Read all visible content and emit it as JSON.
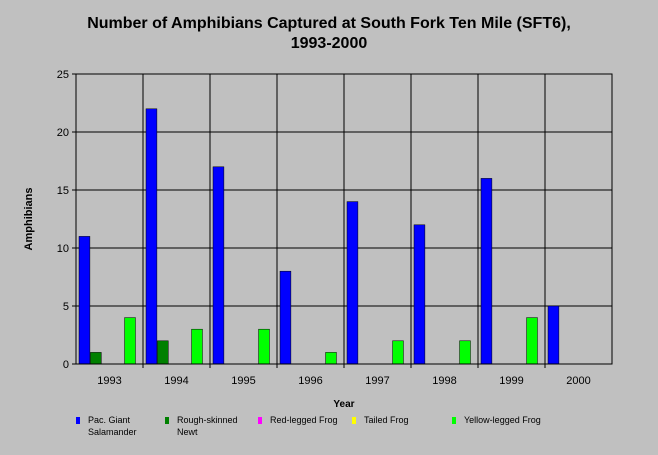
{
  "chart_data": {
    "type": "bar",
    "title_line1": "Number of Amphibians Captured at South Fork Ten Mile (SFT6),",
    "title_line2": "1993-2000",
    "xlabel": "Year",
    "ylabel": "Amphibians",
    "ylim": [
      0,
      25
    ],
    "yticks": [
      "0",
      "5",
      "10",
      "15",
      "20",
      "25"
    ],
    "categories": [
      "1993",
      "1994",
      "1995",
      "1996",
      "1997",
      "1998",
      "1999",
      "2000"
    ],
    "grid": true,
    "legend_position": "bottom",
    "series": [
      {
        "name": "Pac. Giant Salamander",
        "color": "#0000ff",
        "values": [
          11,
          22,
          17,
          8,
          14,
          12,
          16,
          5
        ]
      },
      {
        "name": "Rough-skinned Newt",
        "color": "#008000",
        "values": [
          1,
          2,
          0,
          0,
          0,
          0,
          0,
          0
        ]
      },
      {
        "name": "Red-legged Frog",
        "color": "#ff00ff",
        "values": [
          0,
          0,
          0,
          0,
          0,
          0,
          0,
          0
        ]
      },
      {
        "name": "Tailed Frog",
        "color": "#ffff00",
        "values": [
          0,
          0,
          0,
          0,
          0,
          0,
          0,
          0
        ]
      },
      {
        "name": "Yellow-legged Frog",
        "color": "#00ff00",
        "values": [
          4,
          3,
          3,
          1,
          2,
          2,
          4,
          0
        ]
      }
    ]
  }
}
